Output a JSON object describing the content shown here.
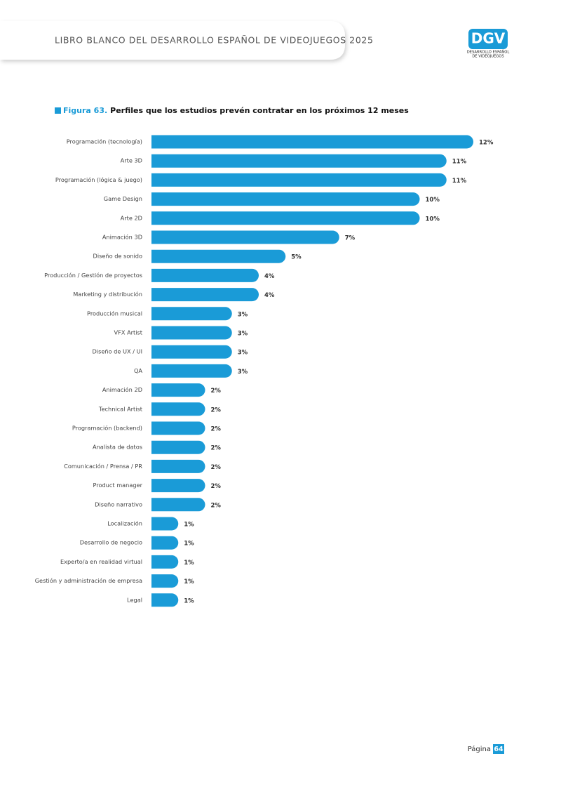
{
  "header": {
    "title": "LIBRO BLANCO DEL DESARROLLO ESPAÑOL DE VIDEOJUEGOS 2025",
    "logo": {
      "mark": "DGV",
      "line1": "DESARROLLO ESPAÑOL",
      "line2": "DE VIDEOJUEGOS"
    }
  },
  "chart_data": {
    "type": "bar",
    "orientation": "horizontal",
    "title_label": "Figura 63.",
    "title": "Perfiles que los estudios prevén contratar en los próximos 12 meses",
    "color": "#1a9bd7",
    "categories": [
      "Programación (tecnología)",
      "Arte 3D",
      "Programación (lógica & juego)",
      "Game Design",
      "Arte 2D",
      "Animación 3D",
      "Diseño de sonido",
      "Producción / Gestión de proyectos",
      "Marketing y distribución",
      "Producción musical",
      "VFX Artist",
      "Diseño de UX / UI",
      "QA",
      "Animación 2D",
      "Technical Artist",
      "Programación (backend)",
      "Analista de datos",
      "Comunicación / Prensa / PR",
      "Product manager",
      "Diseño narrativo",
      "Localización",
      "Desarrollo de negocio",
      "Experto/a en realidad virtual",
      "Gestión y administración de empresa",
      "Legal"
    ],
    "values": [
      12,
      11,
      11,
      10,
      10,
      7,
      5,
      4,
      4,
      3,
      3,
      3,
      3,
      2,
      2,
      2,
      2,
      2,
      2,
      2,
      1,
      1,
      1,
      1,
      1
    ],
    "value_labels": [
      "12%",
      "11%",
      "11%",
      "10%",
      "10%",
      "7%",
      "5%",
      "4%",
      "4%",
      "3%",
      "3%",
      "3%",
      "3%",
      "2%",
      "2%",
      "2%",
      "2%",
      "2%",
      "2%",
      "2%",
      "1%",
      "1%",
      "1%",
      "1%",
      "1%"
    ]
  },
  "footer": {
    "label": "Página",
    "page": "64"
  }
}
